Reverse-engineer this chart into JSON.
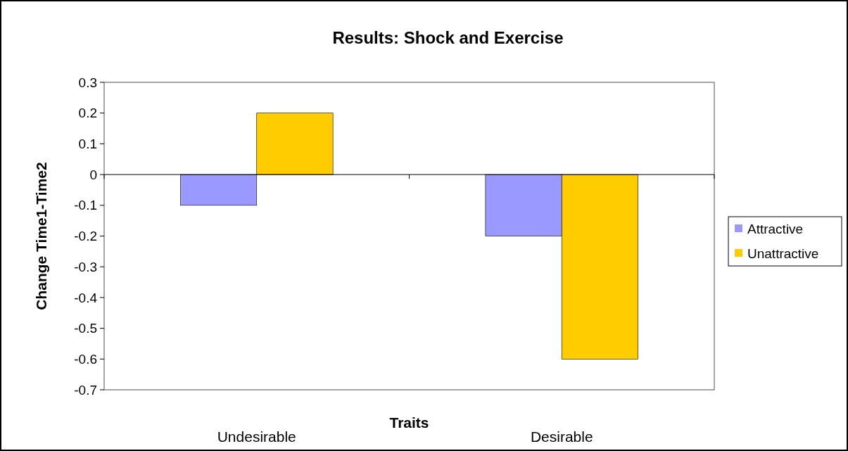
{
  "chart_data": {
    "type": "bar",
    "title": "Results: Shock and Exercise",
    "xlabel": "Traits",
    "ylabel": "Change Time1-Time2",
    "categories": [
      "Undesirable",
      "Desirable"
    ],
    "series": [
      {
        "name": "Attractive",
        "color": "#9999ff",
        "values": [
          -0.1,
          -0.2
        ]
      },
      {
        "name": "Unattractive",
        "color": "#ffcc00",
        "values": [
          0.2,
          -0.6
        ]
      }
    ],
    "ylim": [
      -0.7,
      0.3
    ],
    "yticks": [
      {
        "value": 0.3,
        "label": "0.3"
      },
      {
        "value": 0.2,
        "label": "0.2"
      },
      {
        "value": 0.1,
        "label": "0.1"
      },
      {
        "value": 0,
        "label": "0"
      },
      {
        "value": -0.1,
        "label": "-0.1"
      },
      {
        "value": -0.2,
        "label": "-0.2"
      },
      {
        "value": -0.3,
        "label": "-0.3"
      },
      {
        "value": -0.4,
        "label": "-0.4"
      },
      {
        "value": -0.5,
        "label": "-0.5"
      },
      {
        "value": -0.6,
        "label": "-0.6"
      },
      {
        "value": -0.7,
        "label": "-0.7"
      }
    ],
    "legend": "right"
  }
}
